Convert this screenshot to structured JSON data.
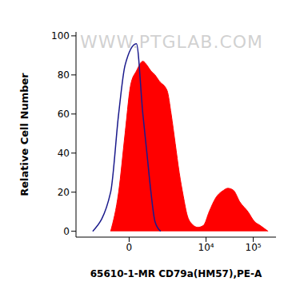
{
  "chart_data": {
    "type": "histogram",
    "x_label": "65610-1-MR CD79a(HM57),PE-A",
    "y_label": "Relative Cell Number",
    "annotations": [
      "WWW.PTGLAB.COM"
    ],
    "log": "x",
    "grid": false,
    "xlim": [
      -3000,
      300000
    ],
    "xticks": [
      0,
      {
        "value": 10000,
        "label": "10⁴"
      },
      {
        "value": 100000,
        "label": "10⁵"
      }
    ],
    "ylim": [
      -3,
      102
    ],
    "yticks": [
      0,
      20,
      40,
      60,
      80,
      100
    ],
    "series": [
      {
        "type": "area",
        "color": "#ff0000",
        "x": [
          -360,
          -165,
          -54,
          20,
          105,
          235,
          340,
          467,
          621,
          810,
          1315,
          1653,
          2063,
          2560,
          3168,
          3900,
          4800,
          6650,
          8800,
          11650,
          16030,
          23800,
          29000,
          38100,
          52200,
          77400,
          105700,
          139000,
          205000
        ],
        "values": [
          0,
          20,
          50,
          75,
          82,
          87,
          85,
          82,
          80,
          77,
          72,
          60,
          45,
          30,
          18,
          8,
          4,
          2,
          3,
          10,
          17,
          21,
          22,
          21,
          15,
          10,
          5,
          3,
          0
        ]
      },
      {
        "type": "line",
        "color": "#1a1a8c",
        "x": [
          -1200,
          -360,
          -165,
          -54,
          105,
          235,
          340,
          467,
          621,
          895
        ],
        "values": [
          0,
          20,
          60,
          85,
          96,
          60,
          40,
          20,
          5,
          0
        ]
      }
    ]
  }
}
